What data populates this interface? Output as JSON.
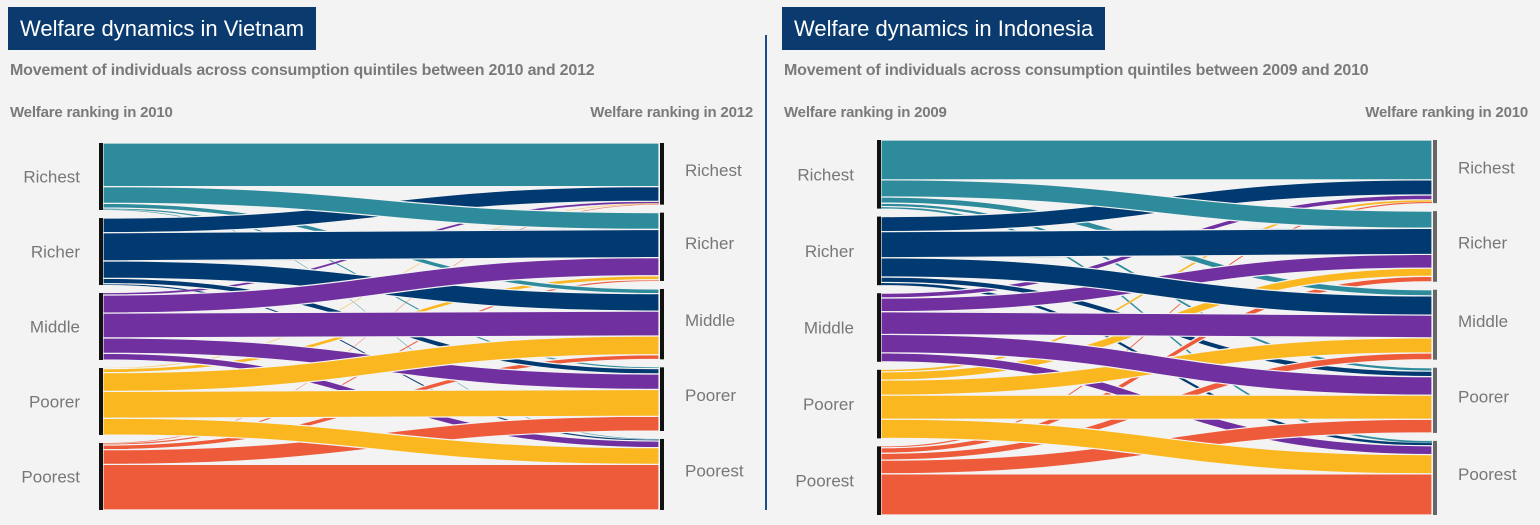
{
  "colors": {
    "title_bg": "#0b3a6e",
    "Richest": "#2e8b9b",
    "Richer": "#003a70",
    "Middle": "#7030a0",
    "Poorer": "#fbb71f",
    "Poorest": "#ee5b3b"
  },
  "chart_data": [
    {
      "type": "sankey",
      "title": "Welfare dynamics in Vietnam",
      "subtitle": "Movement of individuals across consumption quintiles between 2010 and 2012",
      "left_label": "Welfare ranking in 2010",
      "right_label": "Welfare ranking in 2012",
      "nodes": [
        "Richest",
        "Richer",
        "Middle",
        "Poorer",
        "Poorest"
      ],
      "flows_percent_of_origin": [
        [
          65,
          25,
          7,
          2,
          1
        ],
        [
          22,
          42,
          26,
          8,
          2
        ],
        [
          3,
          27,
          37,
          23,
          10
        ],
        [
          1,
          6,
          28,
          40,
          25
        ],
        [
          1,
          2,
          7,
          22,
          68
        ]
      ]
    },
    {
      "type": "sankey",
      "title": "Welfare dynamics in Indonesia",
      "subtitle": "Movement of individuals across consumption quintiles between 2009 and 2010",
      "left_label": "Welfare ranking in 2009",
      "right_label": "Welfare ranking in 2010",
      "nodes": [
        "Richest",
        "Richer",
        "Middle",
        "Poorer",
        "Poorest"
      ],
      "flows_percent_of_origin": [
        [
          58,
          25,
          9,
          5,
          3
        ],
        [
          22,
          38,
          28,
          8,
          4
        ],
        [
          7,
          20,
          33,
          27,
          13
        ],
        [
          3,
          12,
          22,
          35,
          28
        ],
        [
          2,
          8,
          10,
          20,
          60
        ]
      ]
    }
  ]
}
